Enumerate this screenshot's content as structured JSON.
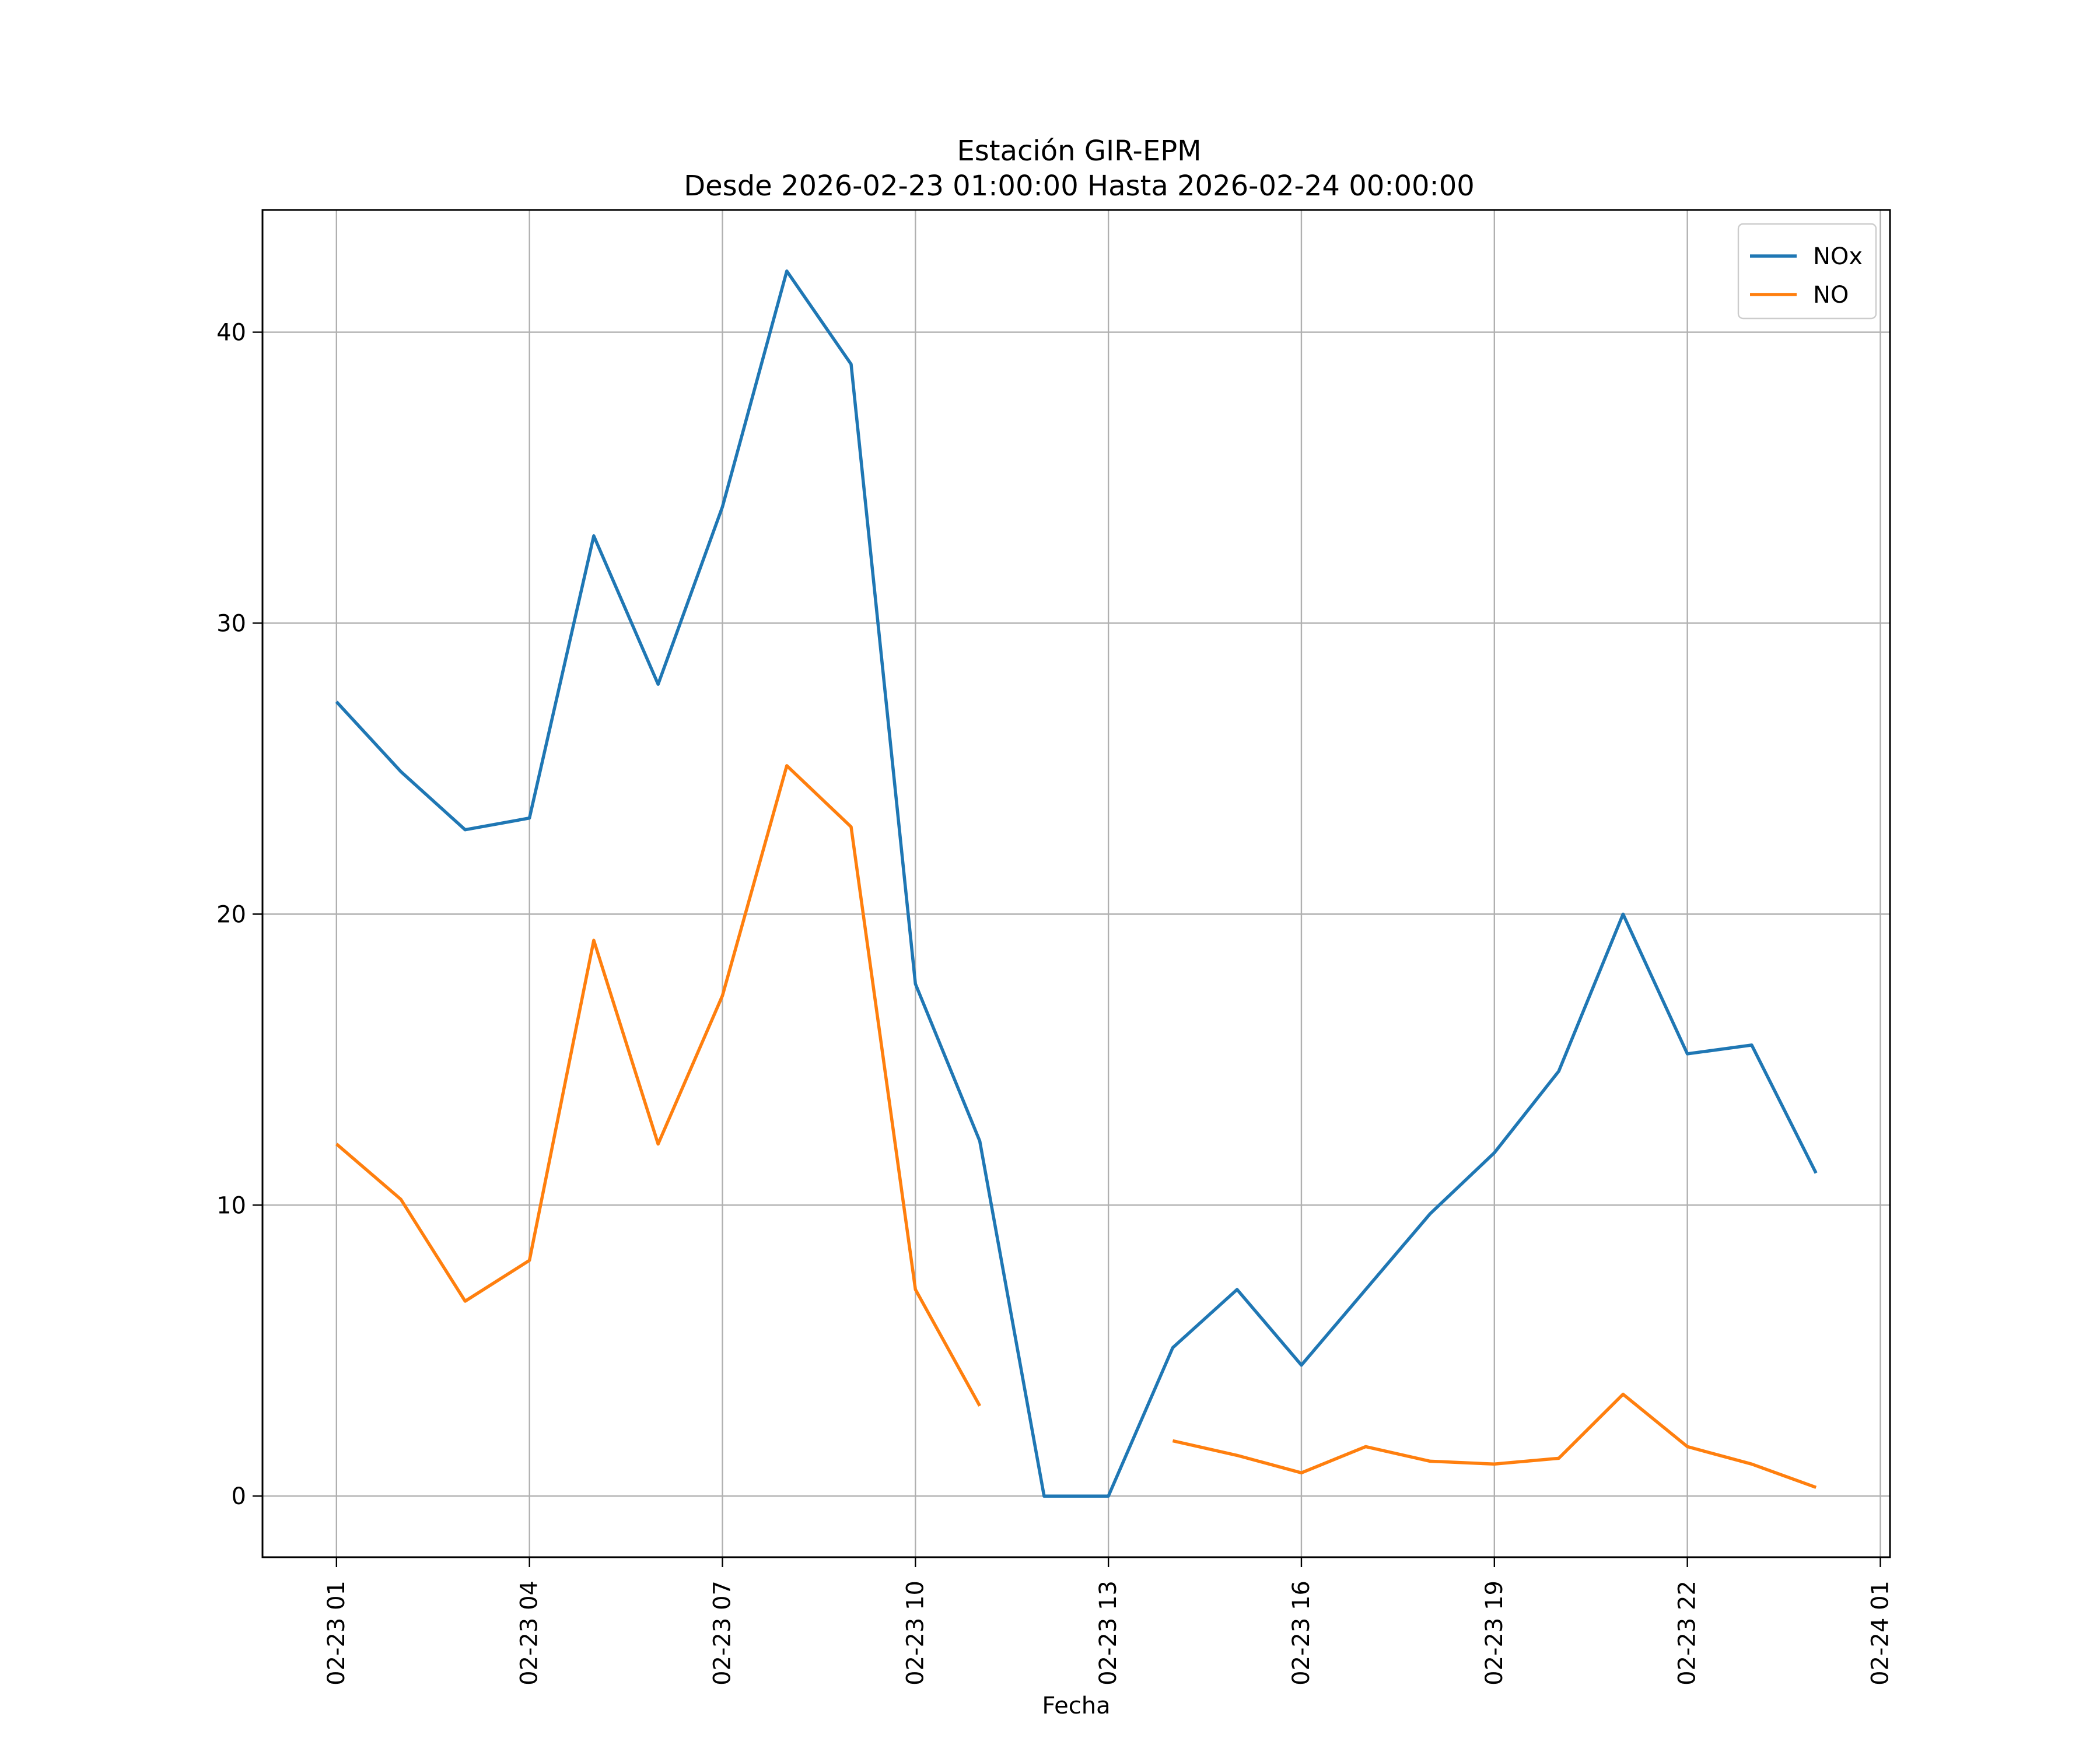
{
  "chart_data": {
    "type": "line",
    "title": "Estación GIR-EPM",
    "subtitle": "Desde 2026-02-23 01:00:00 Hasta 2026-02-24 00:00:00",
    "xlabel": "Fecha",
    "ylabel": "",
    "x": [
      "2026-02-23 01:00",
      "2026-02-23 02:00",
      "2026-02-23 03:00",
      "2026-02-23 04:00",
      "2026-02-23 05:00",
      "2026-02-23 06:00",
      "2026-02-23 07:00",
      "2026-02-23 08:00",
      "2026-02-23 09:00",
      "2026-02-23 10:00",
      "2026-02-23 11:00",
      "2026-02-23 12:00",
      "2026-02-23 13:00",
      "2026-02-23 14:00",
      "2026-02-23 15:00",
      "2026-02-23 16:00",
      "2026-02-23 17:00",
      "2026-02-23 18:00",
      "2026-02-23 19:00",
      "2026-02-23 20:00",
      "2026-02-23 21:00",
      "2026-02-23 22:00",
      "2026-02-23 23:00",
      "2026-02-24 00:00"
    ],
    "xlim": [
      "2026-02-22 23:51",
      "2026-02-24 01:09"
    ],
    "xticks": [
      {
        "value": "2026-02-23 01:00",
        "label": "02-23 01"
      },
      {
        "value": "2026-02-23 04:00",
        "label": "02-23 04"
      },
      {
        "value": "2026-02-23 07:00",
        "label": "02-23 07"
      },
      {
        "value": "2026-02-23 10:00",
        "label": "02-23 10"
      },
      {
        "value": "2026-02-23 13:00",
        "label": "02-23 13"
      },
      {
        "value": "2026-02-23 16:00",
        "label": "02-23 16"
      },
      {
        "value": "2026-02-23 19:00",
        "label": "02-23 19"
      },
      {
        "value": "2026-02-23 22:00",
        "label": "02-23 22"
      },
      {
        "value": "2026-02-24 01:00",
        "label": "02-24 01"
      }
    ],
    "ylim": [
      -2.1,
      44.2
    ],
    "yticks": [
      0,
      10,
      20,
      30,
      40
    ],
    "grid": true,
    "legend_position": "top-right",
    "series": [
      {
        "name": "NOx",
        "color": "#1f77b4",
        "values": [
          27.3,
          24.9,
          22.9,
          23.3,
          33.0,
          27.9,
          34.0,
          42.1,
          38.9,
          17.6,
          12.2,
          0.0,
          0.0,
          5.1,
          7.1,
          4.5,
          7.1,
          9.7,
          11.8,
          14.6,
          20.0,
          15.2,
          15.5,
          11.1
        ]
      },
      {
        "name": "NO",
        "color": "#ff7f0e",
        "values": [
          12.1,
          10.2,
          6.7,
          8.1,
          19.1,
          12.1,
          17.2,
          25.1,
          23.0,
          7.1,
          3.1,
          null,
          null,
          1.9,
          1.4,
          0.8,
          1.7,
          1.2,
          1.1,
          1.3,
          3.5,
          1.7,
          1.1,
          0.3
        ]
      }
    ]
  }
}
